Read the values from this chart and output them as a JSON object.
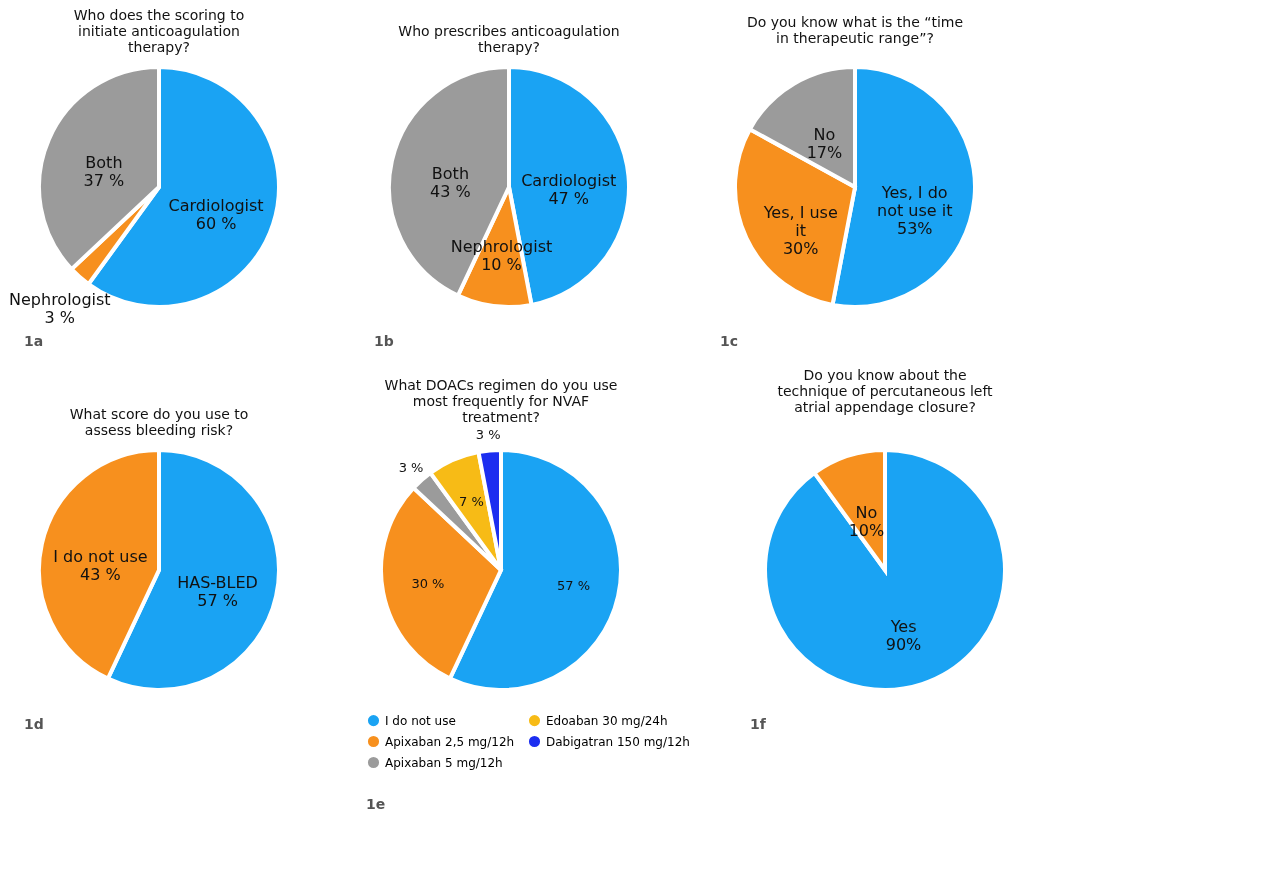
{
  "chart_data": [
    {
      "type": "pie",
      "title": "Who does the scoring to initiate anticoagulation therapy?",
      "categories": [
        "Cardiologist",
        "Nephrologist",
        "Both"
      ],
      "values": [
        60,
        3,
        37
      ],
      "colors": [
        "#1aa3f3",
        "#f7901e",
        "#9b9b9b"
      ],
      "value_labels": [
        "60 %",
        "3 %",
        "37 %"
      ],
      "legend": false,
      "annotations": [
        "1a"
      ]
    },
    {
      "type": "pie",
      "title": "Who prescribes anticoagulation therapy?",
      "categories": [
        "Cardiologist",
        "Nephrologist",
        "Both"
      ],
      "values": [
        47,
        10,
        43
      ],
      "colors": [
        "#1aa3f3",
        "#f7901e",
        "#9b9b9b"
      ],
      "value_labels": [
        "47 %",
        "10 %",
        "43 %"
      ],
      "legend": false,
      "annotations": [
        "1b"
      ]
    },
    {
      "type": "pie",
      "title": "Do you know what is the “time in therapeutic range”?",
      "categories": [
        "Yes, I do not use it",
        "Yes, I use it",
        "No"
      ],
      "values": [
        53,
        30,
        17
      ],
      "colors": [
        "#1aa3f3",
        "#f7901e",
        "#9b9b9b"
      ],
      "value_labels": [
        "53%",
        "30%",
        "17%"
      ],
      "legend": false,
      "annotations": [
        "1c"
      ]
    },
    {
      "type": "pie",
      "title": "What score do you use to assess bleeding risk?",
      "categories": [
        "HAS-BLED",
        "I do not use"
      ],
      "values": [
        57,
        43
      ],
      "colors": [
        "#1aa3f3",
        "#f7901e"
      ],
      "value_labels": [
        "57 %",
        "43 %"
      ],
      "legend": false,
      "annotations": [
        "1d"
      ]
    },
    {
      "type": "pie",
      "title": "What DOACs regimen do you use most frequently for NVAF treatment?",
      "categories": [
        "I do not use",
        "Apixaban 2,5 mg/12h",
        "Apixaban 5 mg/12h",
        "Edoaban 30 mg/24h",
        "Dabigatran 150 mg/12h"
      ],
      "values": [
        57,
        30,
        3,
        7,
        3
      ],
      "colors": [
        "#1aa3f3",
        "#f7901e",
        "#9b9b9b",
        "#f7bb16",
        "#1c2ef0"
      ],
      "value_labels": [
        "57 %",
        "30 %",
        "3 %",
        "7 %",
        "3 %"
      ],
      "legend": "bottom",
      "annotations": [
        "1e"
      ]
    },
    {
      "type": "pie",
      "title": "Do you know about the technique of percutaneous left atrial appendage closure?",
      "categories": [
        "Yes",
        "No"
      ],
      "values": [
        90,
        10
      ],
      "colors": [
        "#1aa3f3",
        "#f7901e"
      ],
      "value_labels": [
        "90%",
        "10%"
      ],
      "legend": false,
      "annotations": [
        "1f"
      ]
    }
  ]
}
